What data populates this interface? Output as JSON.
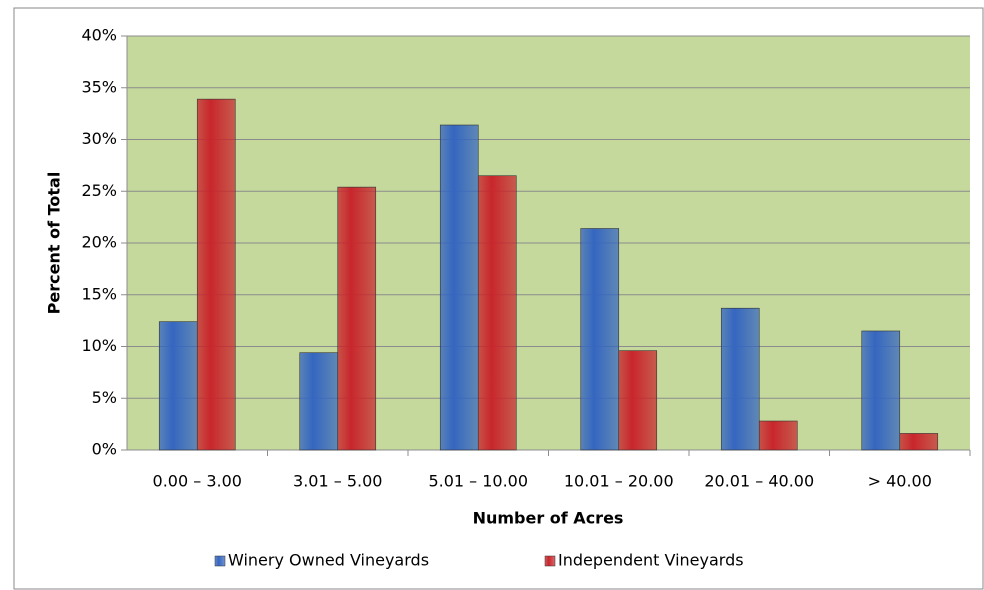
{
  "chart_data": {
    "type": "bar",
    "x_label": "Number of Acres",
    "y_label": "Percent of Total",
    "categories": [
      "0.00 – 3.00",
      "3.01 – 5.00",
      "5.01 – 10.00",
      "10.01 – 20.00",
      "20.01 – 40.00",
      "> 40.00"
    ],
    "series": [
      {
        "name": "Winery Owned Vineyards",
        "color": "#3566c0",
        "values": [
          12.4,
          9.4,
          31.4,
          21.4,
          13.7,
          11.5
        ]
      },
      {
        "name": "Independent Vineyards",
        "color": "#c8262c",
        "values": [
          33.9,
          25.4,
          26.5,
          9.6,
          2.8,
          1.6
        ]
      }
    ],
    "ylim": [
      0,
      40
    ],
    "yticks": [
      {
        "value": 0,
        "label": "0%"
      },
      {
        "value": 5,
        "label": "5%"
      },
      {
        "value": 10,
        "label": "10%"
      },
      {
        "value": 15,
        "label": "15%"
      },
      {
        "value": 20,
        "label": "20%"
      },
      {
        "value": 25,
        "label": "25%"
      },
      {
        "value": 30,
        "label": "30%"
      },
      {
        "value": 35,
        "label": "35%"
      },
      {
        "value": 40,
        "label": "40%"
      }
    ],
    "grid": true,
    "legend": "bottom"
  }
}
